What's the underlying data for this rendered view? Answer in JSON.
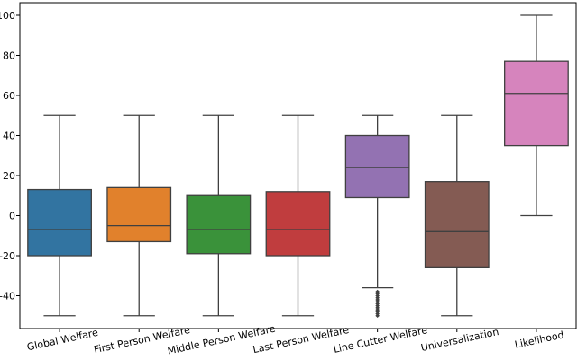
{
  "chart_data": {
    "type": "box",
    "title": "",
    "xlabel": "",
    "ylabel": "",
    "ylim": [
      -55,
      105
    ],
    "yticks": [
      -40,
      -20,
      0,
      20,
      40,
      60,
      80,
      100
    ],
    "grid": false,
    "boxes": [
      {
        "label": "Global Welfare",
        "color": "#3274a1",
        "whisker_low": -50,
        "q1": -20,
        "median": -7,
        "q3": 13,
        "whisker_high": 50,
        "outliers": []
      },
      {
        "label": "First Person Welfare",
        "color": "#e1812c",
        "whisker_low": -50,
        "q1": -13,
        "median": -5,
        "q3": 14,
        "whisker_high": 50,
        "outliers": []
      },
      {
        "label": "Middle Person Welfare",
        "color": "#3a923a",
        "whisker_low": -50,
        "q1": -19,
        "median": -7,
        "q3": 10,
        "whisker_high": 50,
        "outliers": []
      },
      {
        "label": "Last Person Welfare",
        "color": "#c03d3e",
        "whisker_low": -50,
        "q1": -20,
        "median": -7,
        "q3": 12,
        "whisker_high": 50,
        "outliers": []
      },
      {
        "label": "Line Cutter Welfare",
        "color": "#9372b2",
        "whisker_low": -36,
        "q1": 9,
        "median": 24,
        "q3": 40,
        "whisker_high": 50,
        "outliers": [
          -38,
          -39,
          -40,
          -41,
          -42,
          -43,
          -44,
          -45,
          -46,
          -47,
          -48,
          -49,
          -50
        ]
      },
      {
        "label": "Universalization",
        "color": "#845b53",
        "whisker_low": -50,
        "q1": -26,
        "median": -8,
        "q3": 17,
        "whisker_high": 50,
        "outliers": []
      },
      {
        "label": "Likelihood",
        "color": "#d684bd",
        "whisker_low": 0,
        "q1": 35,
        "median": 61,
        "q3": 77,
        "whisker_high": 100,
        "outliers": []
      }
    ]
  }
}
